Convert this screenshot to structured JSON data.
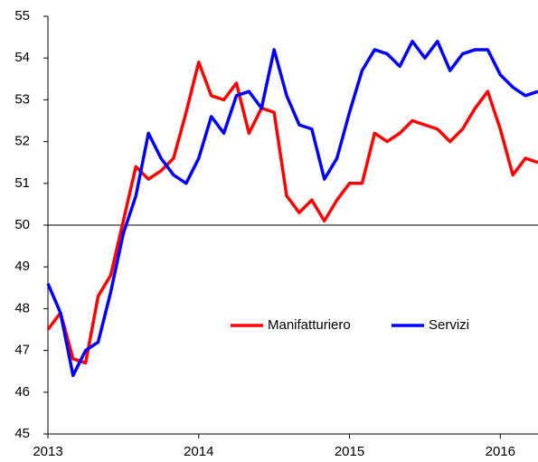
{
  "chart_data": {
    "type": "line",
    "categories": [
      "2013",
      null,
      null,
      null,
      null,
      null,
      null,
      null,
      null,
      null,
      null,
      null,
      "2014",
      null,
      null,
      null,
      null,
      null,
      null,
      null,
      null,
      null,
      null,
      null,
      "2015",
      null,
      null,
      null,
      null,
      null,
      null,
      null,
      null,
      null,
      null,
      null,
      "2016",
      null,
      null,
      null
    ],
    "series": [
      {
        "name": "Manifatturiero",
        "color": "#ff0000",
        "values": [
          47.5,
          47.9,
          46.8,
          46.7,
          48.3,
          48.8,
          50.1,
          51.4,
          51.1,
          51.3,
          51.6,
          52.7,
          53.9,
          53.1,
          53.0,
          53.4,
          52.2,
          52.8,
          52.7,
          50.7,
          50.3,
          50.6,
          50.1,
          50.6,
          51.0,
          51.0,
          52.2,
          52.0,
          52.2,
          52.5,
          52.4,
          52.3,
          52.0,
          52.3,
          52.8,
          53.2,
          52.3,
          51.2,
          51.6,
          51.5
        ]
      },
      {
        "name": "Servizi",
        "color": "#0000ff",
        "values": [
          48.6,
          47.9,
          46.4,
          47.0,
          47.2,
          48.4,
          49.8,
          50.7,
          52.2,
          51.6,
          51.2,
          51.0,
          51.6,
          52.6,
          52.2,
          53.1,
          53.2,
          52.8,
          54.2,
          53.1,
          52.4,
          52.3,
          51.1,
          51.6,
          52.7,
          53.7,
          54.2,
          54.1,
          53.8,
          54.4,
          54.0,
          54.4,
          53.7,
          54.1,
          54.2,
          54.2,
          53.6,
          53.3,
          53.1,
          53.2
        ]
      }
    ],
    "ylim": [
      45,
      55
    ],
    "yticks": [
      45,
      46,
      47,
      48,
      49,
      50,
      51,
      52,
      53,
      54,
      55
    ],
    "reference_line": 50,
    "grid": false,
    "legend": "center"
  }
}
